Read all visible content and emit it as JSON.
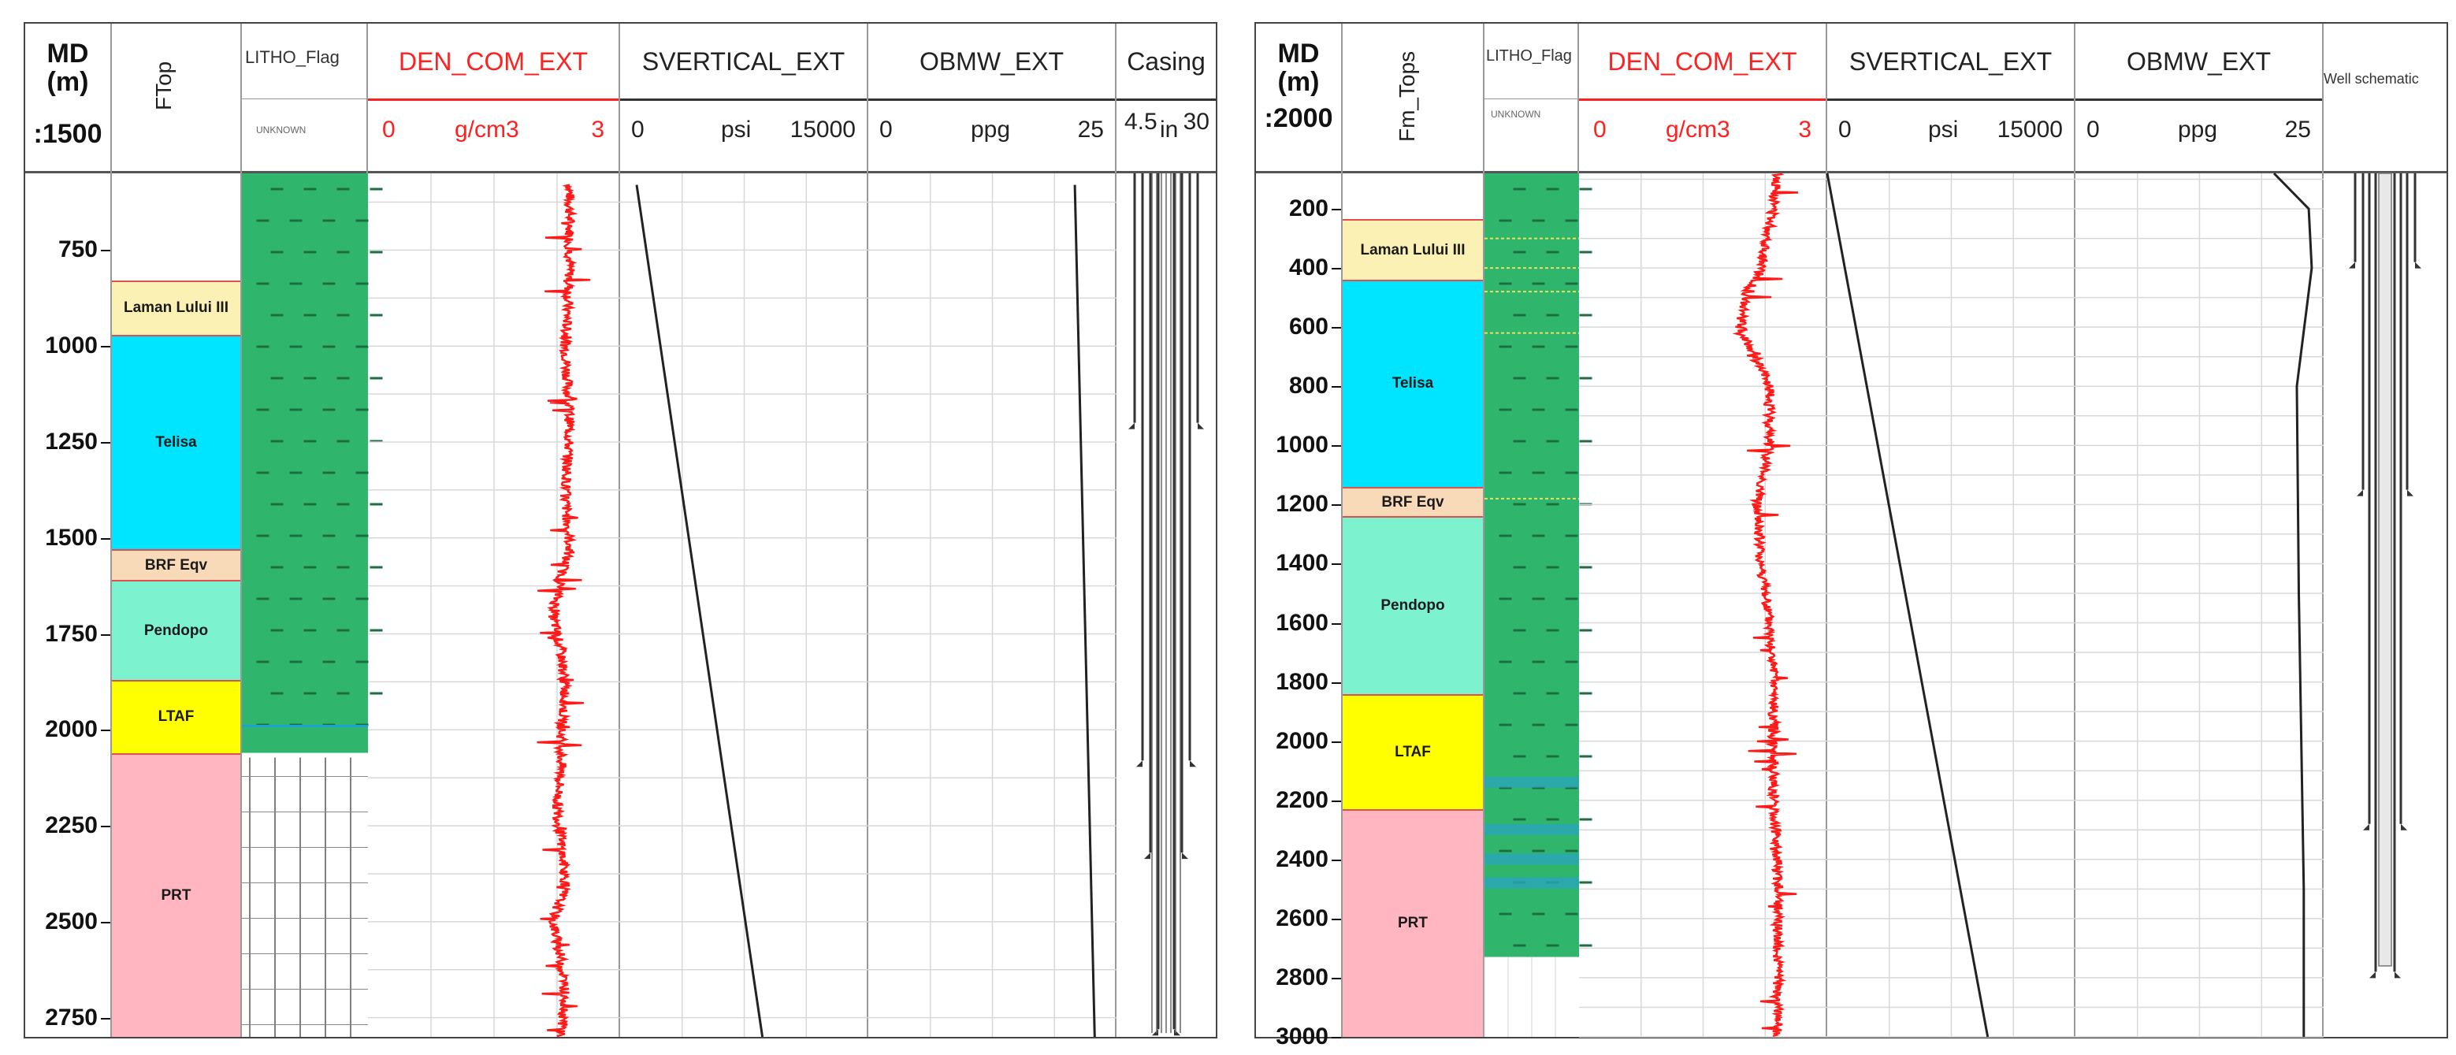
{
  "panels": [
    {
      "md": {
        "label": "MD\n(m)",
        "scale": ":1500"
      },
      "tops_title": "FTop",
      "litho_title": "LITHO_Flag",
      "litho_legend": "UNKNOWN",
      "den": {
        "title": "DEN_COM_EXT",
        "min": "0",
        "unit": "g/cm3",
        "max": "3"
      },
      "sv": {
        "title": "SVERTICAL_EXT",
        "min": "0",
        "unit": "psi",
        "max": "15000"
      },
      "obmw": {
        "title": "OBMW_EXT",
        "min": "0",
        "unit": "ppg",
        "max": "25"
      },
      "casing": {
        "title": "Casing",
        "min": "4.5",
        "unit": "in",
        "max": "30"
      },
      "depth_ticks": [
        "750",
        "1000",
        "1250",
        "1500",
        "1750",
        "2000",
        "2250",
        "2500",
        "2750"
      ],
      "formations": [
        {
          "name": "Laman Lului III",
          "color": "#fbf1b4"
        },
        {
          "name": "Telisa",
          "color": "#00e5ff"
        },
        {
          "name": "BRF Eqv",
          "color": "#f8d9b8"
        },
        {
          "name": "Pendopo",
          "color": "#7df2cf"
        },
        {
          "name": "LTAF",
          "color": "#ffff00"
        },
        {
          "name": "PRT",
          "color": "#ffb6c1"
        }
      ]
    },
    {
      "md": {
        "label": "MD\n(m)",
        "scale": ":2000"
      },
      "tops_title": "Fm_Tops",
      "litho_title": "LITHO_Flag",
      "litho_legend": "UNKNOWN",
      "den": {
        "title": "DEN_COM_EXT",
        "min": "0",
        "unit": "g/cm3",
        "max": "3"
      },
      "sv": {
        "title": "SVERTICAL_EXT",
        "min": "0",
        "unit": "psi",
        "max": "15000"
      },
      "obmw": {
        "title": "OBMW_EXT",
        "min": "0",
        "unit": "ppg",
        "max": "25"
      },
      "casing": {
        "title": "Well schematic"
      },
      "depth_ticks": [
        "200",
        "400",
        "600",
        "800",
        "1000",
        "1200",
        "1400",
        "1600",
        "1800",
        "2000",
        "2200",
        "2400",
        "2600",
        "2800",
        "3000"
      ],
      "formations": [
        {
          "name": "Laman Lului III",
          "color": "#fbf1b4"
        },
        {
          "name": "Telisa",
          "color": "#00e5ff"
        },
        {
          "name": "BRF Eqv",
          "color": "#f8d9b8"
        },
        {
          "name": "Pendopo",
          "color": "#7df2cf"
        },
        {
          "name": "LTAF",
          "color": "#ffff00"
        },
        {
          "name": "PRT",
          "color": "#ffb6c1"
        }
      ]
    }
  ],
  "chart_data": [
    {
      "type": "line",
      "depth_range_m": [
        550,
        2800
      ],
      "formation_tops_m": [
        {
          "name": "Laman Lului III",
          "top": 830,
          "base": 970
        },
        {
          "name": "Telisa",
          "top": 970,
          "base": 1530
        },
        {
          "name": "BRF Eqv",
          "top": 1530,
          "base": 1610
        },
        {
          "name": "Pendopo",
          "top": 1610,
          "base": 1870
        },
        {
          "name": "LTAF",
          "top": 1870,
          "base": 2060
        },
        {
          "name": "PRT",
          "top": 2060,
          "base": 2800
        }
      ],
      "series": [
        {
          "name": "DEN_COM_EXT",
          "unit": "g/cm3",
          "xlim": [
            0,
            3
          ],
          "depth": [
            580,
            800,
            1000,
            1200,
            1400,
            1520,
            1600,
            1700,
            1800,
            1900,
            2000,
            2100,
            2200,
            2300,
            2400,
            2500,
            2600,
            2700,
            2800
          ],
          "values": [
            2.4,
            2.4,
            2.35,
            2.4,
            2.35,
            2.4,
            2.3,
            2.2,
            2.3,
            2.35,
            2.3,
            2.3,
            2.25,
            2.3,
            2.35,
            2.2,
            2.3,
            2.35,
            2.3
          ]
        },
        {
          "name": "SVERTICAL_EXT",
          "unit": "psi",
          "xlim": [
            0,
            15000
          ],
          "depth": [
            580,
            2800
          ],
          "values": [
            1000,
            8600
          ]
        },
        {
          "name": "OBMW_EXT",
          "unit": "ppg",
          "xlim": [
            0,
            25
          ],
          "depth": [
            580,
            2800
          ],
          "values": [
            20.8,
            22.8
          ]
        }
      ]
    },
    {
      "type": "line",
      "depth_range_m": [
        80,
        3000
      ],
      "formation_tops_m": [
        {
          "name": "Laman Lului III",
          "top": 235,
          "base": 440
        },
        {
          "name": "Telisa",
          "top": 440,
          "base": 1140
        },
        {
          "name": "BRF Eqv",
          "top": 1140,
          "base": 1240
        },
        {
          "name": "Pendopo",
          "top": 1240,
          "base": 1840
        },
        {
          "name": "LTAF",
          "top": 1840,
          "base": 2230
        },
        {
          "name": "PRT",
          "top": 2230,
          "base": 3000
        }
      ],
      "series": [
        {
          "name": "DEN_COM_EXT",
          "unit": "g/cm3",
          "xlim": [
            0,
            3
          ],
          "depth": [
            80,
            200,
            400,
            500,
            600,
            800,
            1000,
            1200,
            1400,
            1600,
            1800,
            2000,
            2200,
            2400,
            2600,
            2800,
            3000
          ],
          "values": [
            2.4,
            2.35,
            2.2,
            2.0,
            1.95,
            2.3,
            2.3,
            2.15,
            2.2,
            2.3,
            2.35,
            2.35,
            2.35,
            2.4,
            2.4,
            2.4,
            2.4
          ]
        },
        {
          "name": "SVERTICAL_EXT",
          "unit": "psi",
          "xlim": [
            0,
            15000
          ],
          "depth": [
            80,
            3000
          ],
          "values": [
            0,
            9700
          ]
        },
        {
          "name": "OBMW_EXT",
          "unit": "ppg",
          "xlim": [
            0,
            25
          ],
          "depth": [
            80,
            200,
            400,
            800,
            1500,
            2500,
            3000
          ],
          "values": [
            20,
            23.5,
            23.8,
            22.3,
            22.5,
            23.0,
            23.0
          ]
        }
      ]
    }
  ]
}
